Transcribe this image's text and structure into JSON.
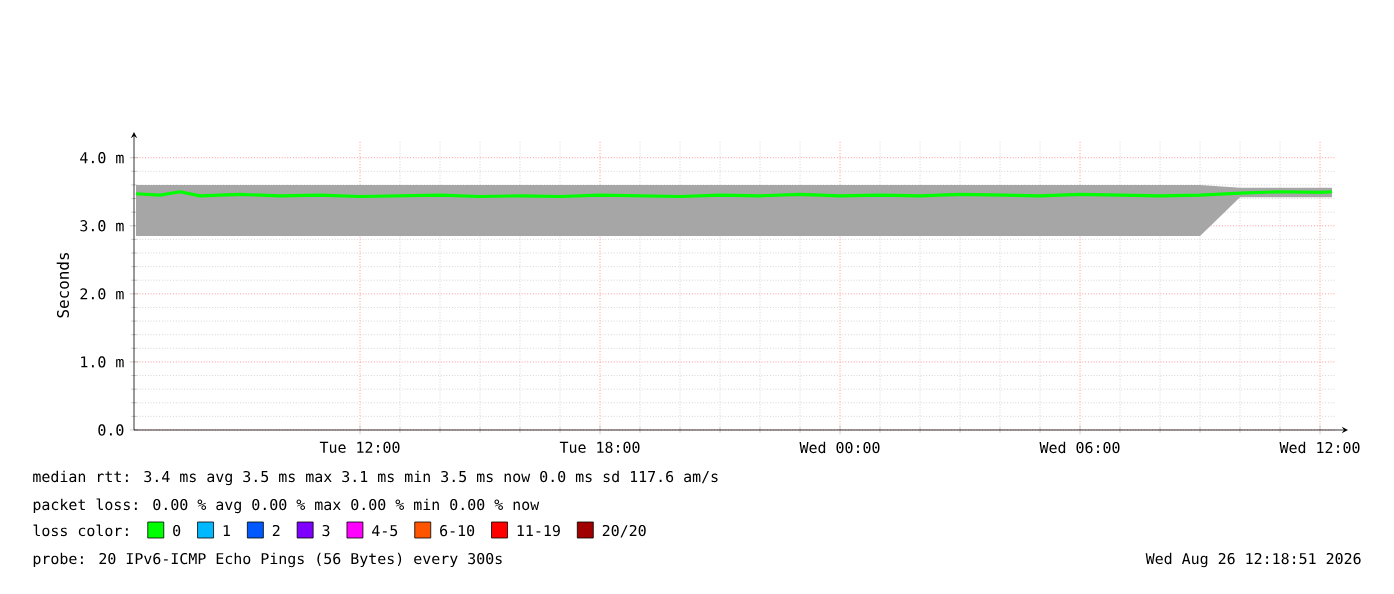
{
  "chart_data": {
    "type": "line",
    "ylabel": "Seconds",
    "legend_title": "loss color:",
    "x": [
      "2026-08-25T06:24",
      "2026-08-25T07:00",
      "2026-08-25T07:30",
      "2026-08-25T08:00",
      "2026-08-25T09:00",
      "2026-08-25T10:00",
      "2026-08-25T11:00",
      "2026-08-25T12:00",
      "2026-08-25T13:00",
      "2026-08-25T14:00",
      "2026-08-25T15:00",
      "2026-08-25T16:00",
      "2026-08-25T17:00",
      "2026-08-25T18:00",
      "2026-08-25T19:00",
      "2026-08-25T20:00",
      "2026-08-25T21:00",
      "2026-08-25T22:00",
      "2026-08-25T23:00",
      "2026-08-26T00:00",
      "2026-08-26T01:00",
      "2026-08-26T02:00",
      "2026-08-26T03:00",
      "2026-08-26T04:00",
      "2026-08-26T05:00",
      "2026-08-26T06:00",
      "2026-08-26T07:00",
      "2026-08-26T08:00",
      "2026-08-26T09:00",
      "2026-08-26T10:00",
      "2026-08-26T11:00",
      "2026-08-26T12:00",
      "2026-08-26T12:18"
    ],
    "series": [
      {
        "name": "0",
        "color": "#00ff00",
        "values": [
          3.47,
          3.45,
          3.5,
          3.44,
          3.46,
          3.44,
          3.45,
          3.43,
          3.44,
          3.45,
          3.43,
          3.44,
          3.43,
          3.45,
          3.44,
          3.43,
          3.45,
          3.44,
          3.46,
          3.44,
          3.45,
          3.44,
          3.46,
          3.45,
          3.44,
          3.46,
          3.45,
          3.44,
          3.45,
          3.48,
          3.5,
          3.49,
          3.5
        ],
        "lower": [
          2.85,
          2.85,
          2.85,
          2.85,
          2.85,
          2.85,
          2.85,
          2.85,
          2.85,
          2.85,
          2.85,
          2.85,
          2.85,
          2.85,
          2.85,
          2.85,
          2.85,
          2.85,
          2.85,
          2.85,
          2.85,
          2.85,
          2.85,
          2.85,
          2.85,
          2.85,
          2.85,
          2.85,
          2.85,
          3.42,
          3.42,
          3.42,
          3.42
        ],
        "upper": [
          3.6,
          3.6,
          3.6,
          3.6,
          3.6,
          3.6,
          3.6,
          3.6,
          3.6,
          3.6,
          3.6,
          3.6,
          3.6,
          3.6,
          3.6,
          3.6,
          3.6,
          3.6,
          3.6,
          3.6,
          3.6,
          3.6,
          3.6,
          3.6,
          3.6,
          3.6,
          3.6,
          3.6,
          3.6,
          3.56,
          3.56,
          3.56,
          3.56
        ]
      },
      {
        "name": "1",
        "color": "#00b8ff",
        "values": [
          null,
          null,
          null,
          null,
          null,
          null,
          null,
          null,
          null,
          null,
          null,
          null,
          null,
          null,
          null,
          null,
          null,
          null,
          null,
          null,
          null,
          null,
          null,
          null,
          null,
          null,
          null,
          null,
          null,
          null,
          null,
          null,
          null
        ]
      },
      {
        "name": "2",
        "color": "#0059ff",
        "values": [
          null,
          null,
          null,
          null,
          null,
          null,
          null,
          null,
          null,
          null,
          null,
          null,
          null,
          null,
          null,
          null,
          null,
          null,
          null,
          null,
          null,
          null,
          null,
          null,
          null,
          null,
          null,
          null,
          null,
          null,
          null,
          null,
          null
        ]
      },
      {
        "name": "3",
        "color": "#7e00ff",
        "values": [
          null,
          null,
          null,
          null,
          null,
          null,
          null,
          null,
          null,
          null,
          null,
          null,
          null,
          null,
          null,
          null,
          null,
          null,
          null,
          null,
          null,
          null,
          null,
          null,
          null,
          null,
          null,
          null,
          null,
          null,
          null,
          null,
          null
        ]
      },
      {
        "name": "4-5",
        "color": "#ff00ff",
        "values": [
          null,
          null,
          null,
          null,
          null,
          null,
          null,
          null,
          null,
          null,
          null,
          null,
          null,
          null,
          null,
          null,
          null,
          null,
          null,
          null,
          null,
          null,
          null,
          null,
          null,
          null,
          null,
          null,
          null,
          null,
          null,
          null,
          null
        ]
      },
      {
        "name": "6-10",
        "color": "#ff5500",
        "values": [
          null,
          null,
          null,
          null,
          null,
          null,
          null,
          null,
          null,
          null,
          null,
          null,
          null,
          null,
          null,
          null,
          null,
          null,
          null,
          null,
          null,
          null,
          null,
          null,
          null,
          null,
          null,
          null,
          null,
          null,
          null,
          null,
          null
        ]
      },
      {
        "name": "11-19",
        "color": "#ff0000",
        "values": [
          null,
          null,
          null,
          null,
          null,
          null,
          null,
          null,
          null,
          null,
          null,
          null,
          null,
          null,
          null,
          null,
          null,
          null,
          null,
          null,
          null,
          null,
          null,
          null,
          null,
          null,
          null,
          null,
          null,
          null,
          null,
          null,
          null
        ]
      },
      {
        "name": "20/20",
        "color": "#a10000",
        "values": [
          null,
          null,
          null,
          null,
          null,
          null,
          null,
          null,
          null,
          null,
          null,
          null,
          null,
          null,
          null,
          null,
          null,
          null,
          null,
          null,
          null,
          null,
          null,
          null,
          null,
          null,
          null,
          null,
          null,
          null,
          null,
          null,
          null
        ]
      }
    ],
    "xlim": [
      "2026-08-25T06:21",
      "2026-08-26T12:24"
    ],
    "ylim": [
      0,
      4.26
    ],
    "xticks": [
      {
        "value": "2026-08-25T12:00",
        "label": "Tue 12:00"
      },
      {
        "value": "2026-08-25T18:00",
        "label": "Tue 18:00"
      },
      {
        "value": "2026-08-26T00:00",
        "label": "Wed 00:00"
      },
      {
        "value": "2026-08-26T06:00",
        "label": "Wed 06:00"
      },
      {
        "value": "2026-08-26T12:00",
        "label": "Wed 12:00"
      }
    ],
    "yticks": [
      {
        "value": 0,
        "label": "0.0"
      },
      {
        "value": 1,
        "label": "1.0 m"
      },
      {
        "value": 2,
        "label": "2.0 m"
      },
      {
        "value": 3,
        "label": "3.0 m"
      },
      {
        "value": 4,
        "label": "4.0 m"
      }
    ],
    "grid": true,
    "legend": "bottom",
    "line_style": "solid",
    "marker": "none",
    "annotations": [
      "median rtt: 3.4 ms avg 3.5 ms max 3.1 ms min 3.5 ms now 0.0 ms sd 117.6 am/s",
      "packet loss: 0.00 % avg 0.00 % max 0.00 % min 0.00 % now",
      "probe: 20 IPv6-ICMP Echo Pings (56 Bytes) every 300s",
      "Wed Aug 26 12:18:51 2026"
    ]
  }
}
